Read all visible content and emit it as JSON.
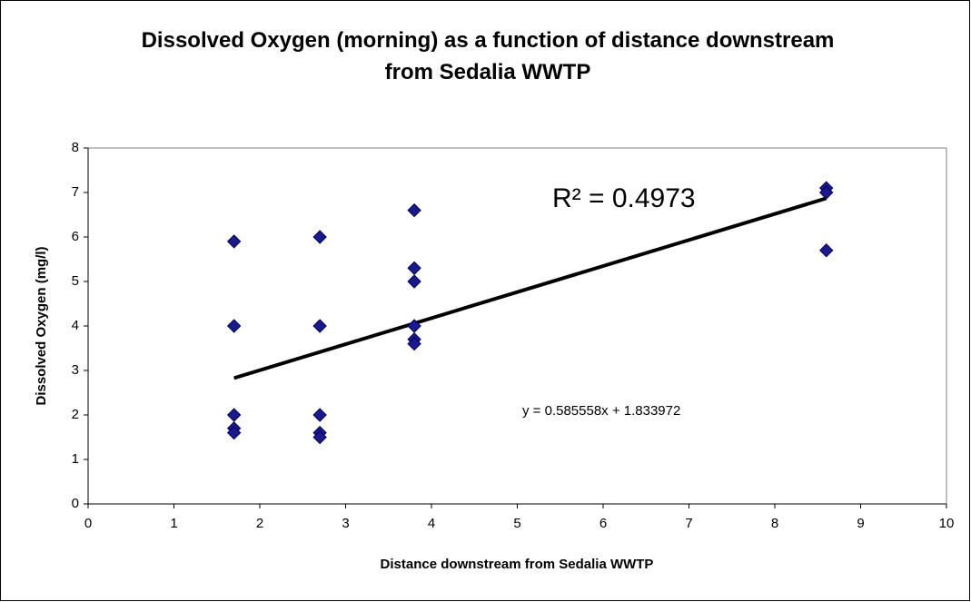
{
  "chart_data": {
    "type": "scatter",
    "title": "Dissolved Oxygen (morning) as a function of distance downstream from Sedalia WWTP",
    "x_label": "Distance downstream from Sedalia WWTP",
    "y_label": "Dissolved Oxygen (mg/l)",
    "x": [
      1.7,
      1.7,
      1.7,
      1.7,
      1.7,
      2.7,
      2.7,
      2.7,
      2.7,
      2.7,
      3.8,
      3.8,
      3.8,
      3.8,
      3.8,
      3.8,
      8.6,
      8.6,
      8.6
    ],
    "values": [
      5.9,
      4.0,
      2.0,
      1.7,
      1.6,
      6.0,
      4.0,
      2.0,
      1.6,
      1.5,
      6.6,
      5.3,
      5.0,
      4.0,
      3.7,
      3.6,
      7.1,
      7.0,
      5.7
    ],
    "color": "#1a1a8c",
    "xlim": [
      0,
      10
    ],
    "xticks": [
      0,
      1,
      2,
      3,
      4,
      5,
      6,
      7,
      8,
      9,
      10
    ],
    "ylim": [
      0,
      8
    ],
    "yticks": [
      0,
      1,
      2,
      3,
      4,
      5,
      6,
      7,
      8
    ],
    "grid": false,
    "trendline": {
      "slope": 0.585558,
      "intercept": 1.833972,
      "color": "#000000",
      "equation_label": "y = 0.585558x + 1.833972",
      "r_squared_label": "R² = 0.4973"
    }
  }
}
